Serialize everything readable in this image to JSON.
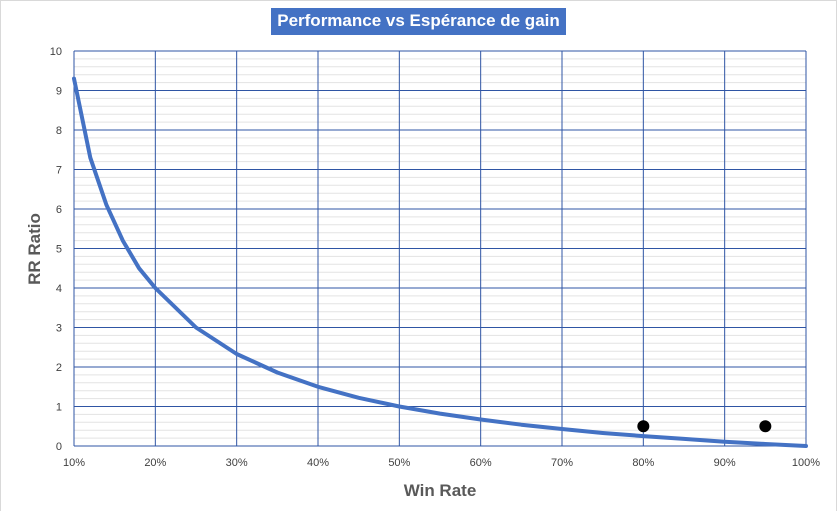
{
  "chart_data": {
    "type": "line",
    "title": "Performance vs Espérance de gain",
    "xlabel": "Win Rate",
    "ylabel": "RR Ratio",
    "x_ticks": [
      "10%",
      "20%",
      "30%",
      "40%",
      "50%",
      "60%",
      "70%",
      "80%",
      "90%",
      "100%"
    ],
    "y_ticks": [
      "0",
      "1",
      "2",
      "3",
      "4",
      "5",
      "6",
      "7",
      "8",
      "9",
      "10"
    ],
    "xlim": [
      0.1,
      1.0
    ],
    "ylim": [
      0,
      10
    ],
    "grid": true,
    "series": [
      {
        "x": [
          0.1,
          0.12,
          0.14,
          0.16,
          0.18,
          0.2,
          0.25,
          0.3,
          0.35,
          0.4,
          0.45,
          0.5,
          0.55,
          0.6,
          0.65,
          0.7,
          0.75,
          0.8,
          0.85,
          0.9,
          0.95,
          1.0
        ],
        "y": [
          9.3,
          7.3,
          6.1,
          5.2,
          4.5,
          4.0,
          3.0,
          2.33,
          1.86,
          1.5,
          1.22,
          1.0,
          0.82,
          0.67,
          0.54,
          0.43,
          0.33,
          0.25,
          0.18,
          0.11,
          0.05,
          0.0
        ],
        "color": "#4472c4"
      },
      {
        "type": "scatter",
        "x": [
          0.8,
          0.95
        ],
        "y": [
          0.5,
          0.5
        ],
        "color": "#000000"
      }
    ]
  }
}
